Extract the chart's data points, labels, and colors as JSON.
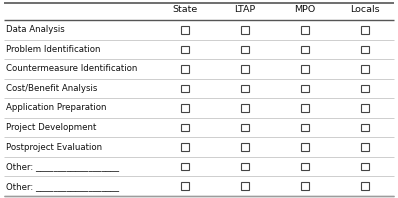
{
  "columns": [
    "State",
    "LTAP",
    "MPO",
    "Locals"
  ],
  "rows": [
    "Data Analysis",
    "Problem Identification",
    "Countermeasure Identification",
    "Cost/Benefit Analysis",
    "Application Preparation",
    "Project Development",
    "Postproject Evaluation",
    "Other: ___________________",
    "Other: ___________________"
  ],
  "background_color": "#ffffff",
  "header_bg": "#ffffff",
  "line_color": "#888888",
  "text_color": "#111111",
  "checkbox_edge_color": "#444444",
  "font_size_header": 6.8,
  "font_size_row": 6.2,
  "fig_width": 3.98,
  "fig_height": 1.98,
  "dpi": 100
}
